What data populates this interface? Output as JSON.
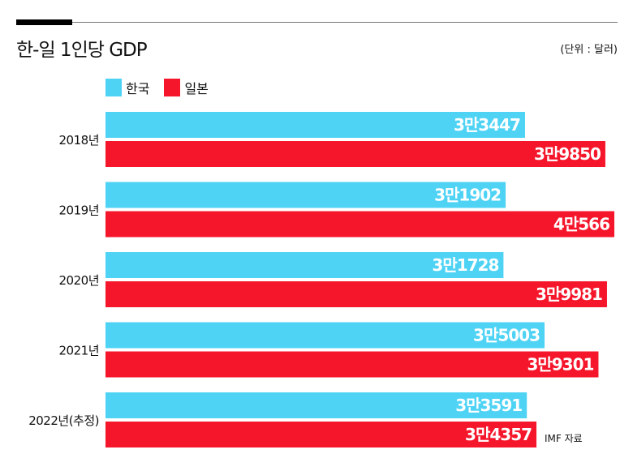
{
  "chart_data": {
    "type": "bar",
    "orientation": "horizontal",
    "title": "한-일 1인당 GDP",
    "unit_note": "(단위 : 달러)",
    "source": "IMF 자료",
    "categories": [
      "2018년",
      "2019년",
      "2020년",
      "2021년",
      "2022년(추정)"
    ],
    "series": [
      {
        "name": "한국",
        "color": "#4fd3f5",
        "values": [
          33447,
          31902,
          31728,
          35003,
          33591
        ],
        "labels": [
          "3만3447",
          "3만1902",
          "3만1728",
          "3만5003",
          "3만3591"
        ]
      },
      {
        "name": "일본",
        "color": "#f5162b",
        "values": [
          39850,
          40566,
          39981,
          39301,
          34357
        ],
        "labels": [
          "3만9850",
          "4만566",
          "3만9981",
          "3만9301",
          "3만4357"
        ]
      }
    ],
    "xlim": [
      0,
      40566
    ],
    "grid": false,
    "legend": "top-left"
  }
}
